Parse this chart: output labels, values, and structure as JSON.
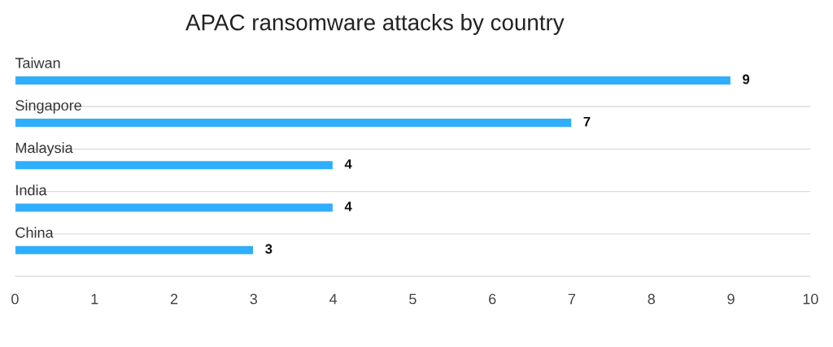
{
  "chart_data": {
    "type": "bar",
    "orientation": "horizontal",
    "title": "APAC ransomware attacks by country",
    "categories": [
      "Taiwan",
      "Singapore",
      "Malaysia",
      "India",
      "China"
    ],
    "values": [
      9,
      7,
      4,
      4,
      3
    ],
    "color": "#2eaefc",
    "xlim": [
      0,
      10
    ],
    "xticks": [
      0,
      1,
      2,
      3,
      4,
      5,
      6,
      7,
      8,
      9,
      10
    ],
    "data_labels": true,
    "grid": "y"
  }
}
